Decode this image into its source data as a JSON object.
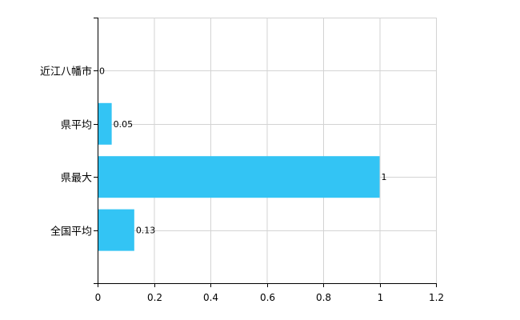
{
  "chart_data": {
    "type": "bar",
    "orientation": "horizontal",
    "categories": [
      "近江八幡市",
      "県平均",
      "県最大",
      "全国平均"
    ],
    "values": [
      0,
      0.05,
      1,
      0.13
    ],
    "value_labels": [
      "0",
      "0.05",
      "1",
      "0.13"
    ],
    "xlim": [
      0,
      1.2
    ],
    "x_ticks": [
      0,
      0.2,
      0.4,
      0.6,
      0.8,
      1,
      1.2
    ],
    "x_tick_labels": [
      "0",
      "0.2",
      "0.4",
      "0.6",
      "0.8",
      "1",
      "1.2"
    ],
    "grid": true,
    "bar_color": "#33c4f4",
    "grid_color": "#d3d3d3",
    "title": "",
    "xlabel": "",
    "ylabel": ""
  }
}
